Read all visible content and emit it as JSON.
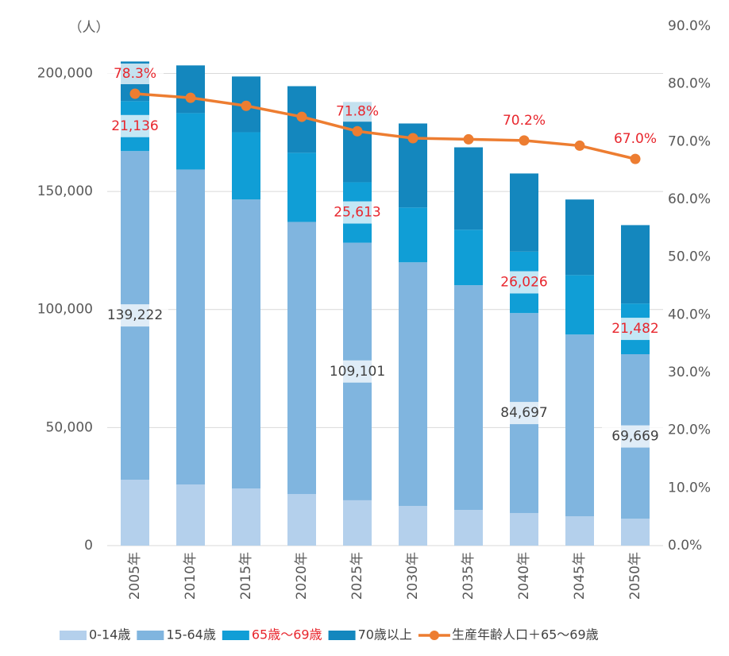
{
  "chart_data": {
    "type": "stacked_bar_line",
    "y_axis_label": "（人）",
    "categories": [
      "2005年",
      "2010年",
      "2015年",
      "2020年",
      "2025年",
      "2030年",
      "2035年",
      "2040年",
      "2045年",
      "2050年"
    ],
    "series": [
      {
        "name": "0-14歳",
        "color": "#b4d0ec",
        "values": [
          27900,
          25900,
          24200,
          21800,
          19200,
          16800,
          15100,
          13800,
          12400,
          11400
        ]
      },
      {
        "name": "15-64歳",
        "color": "#80b5df",
        "values": [
          139222,
          133400,
          122400,
          115300,
          109101,
          103200,
          95200,
          84697,
          77000,
          69669
        ],
        "value_labels": [
          "139,222",
          null,
          null,
          null,
          "109,101",
          null,
          null,
          "84,697",
          null,
          "69,669"
        ]
      },
      {
        "name": "65歳～69歳",
        "color": "#109ed6",
        "legend_color": "#e8262d",
        "values": [
          21136,
          23900,
          28500,
          29300,
          25613,
          23200,
          23500,
          26026,
          25200,
          21482
        ],
        "value_labels": [
          "21,136",
          null,
          null,
          null,
          "25,613",
          null,
          null,
          "26,026",
          null,
          "21,482"
        ]
      },
      {
        "name": "70歳以上",
        "color": "#1487be",
        "values": [
          16800,
          20200,
          23600,
          28200,
          34000,
          35600,
          34900,
          33100,
          32000,
          33200
        ]
      },
      {
        "name": "生産年齢人口＋65～69歳",
        "type": "line",
        "axis": "y2",
        "color": "#ed7d31",
        "values": [
          78.3,
          77.6,
          76.2,
          74.3,
          71.8,
          70.6,
          70.4,
          70.2,
          69.3,
          67.0
        ],
        "value_labels": [
          "78.3%",
          null,
          null,
          null,
          "71.8%",
          null,
          null,
          "70.2%",
          null,
          "67.0%"
        ]
      }
    ],
    "ylim": [
      0,
      220000
    ],
    "yticks": [
      0,
      {
        "value": 50000,
        "label": "50,000"
      },
      {
        "value": 100000,
        "label": "100,000"
      },
      {
        "value": 150000,
        "label": "150,000"
      },
      {
        "value": 200000,
        "label": "200,000"
      }
    ],
    "y2lim": [
      0,
      90
    ],
    "y2ticks": [
      {
        "value": 0,
        "label": "0.0%"
      },
      {
        "value": 10,
        "label": "10.0%"
      },
      {
        "value": 20,
        "label": "20.0%"
      },
      {
        "value": 30,
        "label": "30.0%"
      },
      {
        "value": 40,
        "label": "40.0%"
      },
      {
        "value": 50,
        "label": "50.0%"
      },
      {
        "value": 60,
        "label": "60.0%"
      },
      {
        "value": 70,
        "label": "70.0%"
      },
      {
        "value": 80,
        "label": "80.0%"
      },
      {
        "value": 90,
        "label": "90.0%"
      }
    ],
    "grid": true,
    "legend": "bottom"
  }
}
